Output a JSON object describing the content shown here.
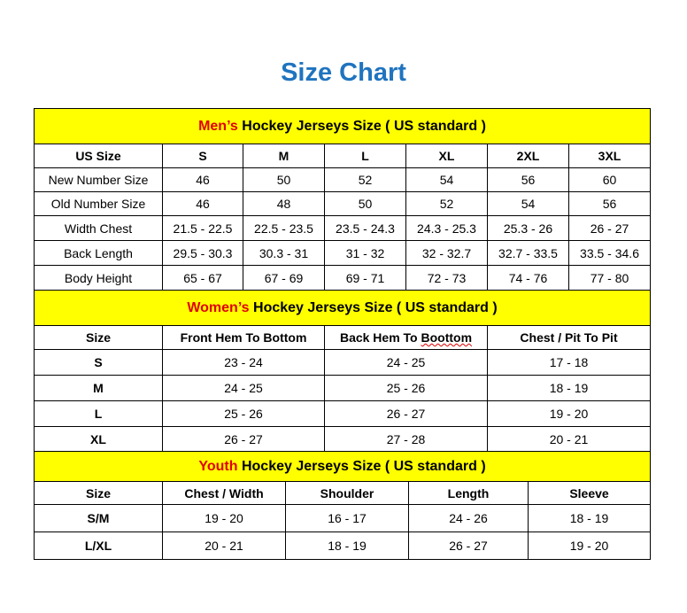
{
  "title": "Size Chart",
  "colors": {
    "title": "#1f74bf",
    "banner_bg": "#ffff00",
    "highlight": "#e00000"
  },
  "men": {
    "banner_highlight": "Men’s",
    "banner_rest": " Hockey Jerseys Size ( US standard )",
    "headers": [
      "US Size",
      "S",
      "M",
      "L",
      "XL",
      "2XL",
      "3XL"
    ],
    "rows": [
      [
        "New Number Size",
        "46",
        "50",
        "52",
        "54",
        "56",
        "60"
      ],
      [
        "Old Number Size",
        "46",
        "48",
        "50",
        "52",
        "54",
        "56"
      ],
      [
        "Width Chest",
        "21.5 - 22.5",
        "22.5 - 23.5",
        "23.5 - 24.3",
        "24.3 - 25.3",
        "25.3 - 26",
        "26 - 27"
      ],
      [
        "Back Length",
        "29.5 - 30.3",
        "30.3 - 31",
        "31 - 32",
        "32 - 32.7",
        "32.7 - 33.5",
        "33.5 - 34.6"
      ],
      [
        "Body Height",
        "65 - 67",
        "67 - 69",
        "69 - 71",
        "72 - 73",
        "74 - 76",
        "77 - 80"
      ]
    ]
  },
  "women": {
    "banner_highlight": "Women’s",
    "banner_rest": " Hockey Jerseys Size ( US standard )",
    "headers": [
      "Size",
      "Front Hem To Bottom",
      "Back Hem To ",
      "Boottom",
      "Chest / Pit To Pit"
    ],
    "rows": [
      [
        "S",
        "23 - 24",
        "24 - 25",
        "17 - 18"
      ],
      [
        "M",
        "24 - 25",
        "25 - 26",
        "18 - 19"
      ],
      [
        "L",
        "25 - 26",
        "26 - 27",
        "19 - 20"
      ],
      [
        "XL",
        "26 - 27",
        "27 - 28",
        "20 - 21"
      ]
    ]
  },
  "youth": {
    "banner_highlight": "Youth",
    "banner_rest": " Hockey Jerseys Size ( US standard )",
    "headers": [
      "Size",
      "Chest / Width",
      "Shoulder",
      "Length",
      "Sleeve"
    ],
    "rows": [
      [
        "S/M",
        "19 - 20",
        "16 - 17",
        "24 - 26",
        "18 - 19"
      ],
      [
        "L/XL",
        "20 - 21",
        "18 - 19",
        "26 - 27",
        "19 - 20"
      ]
    ]
  }
}
